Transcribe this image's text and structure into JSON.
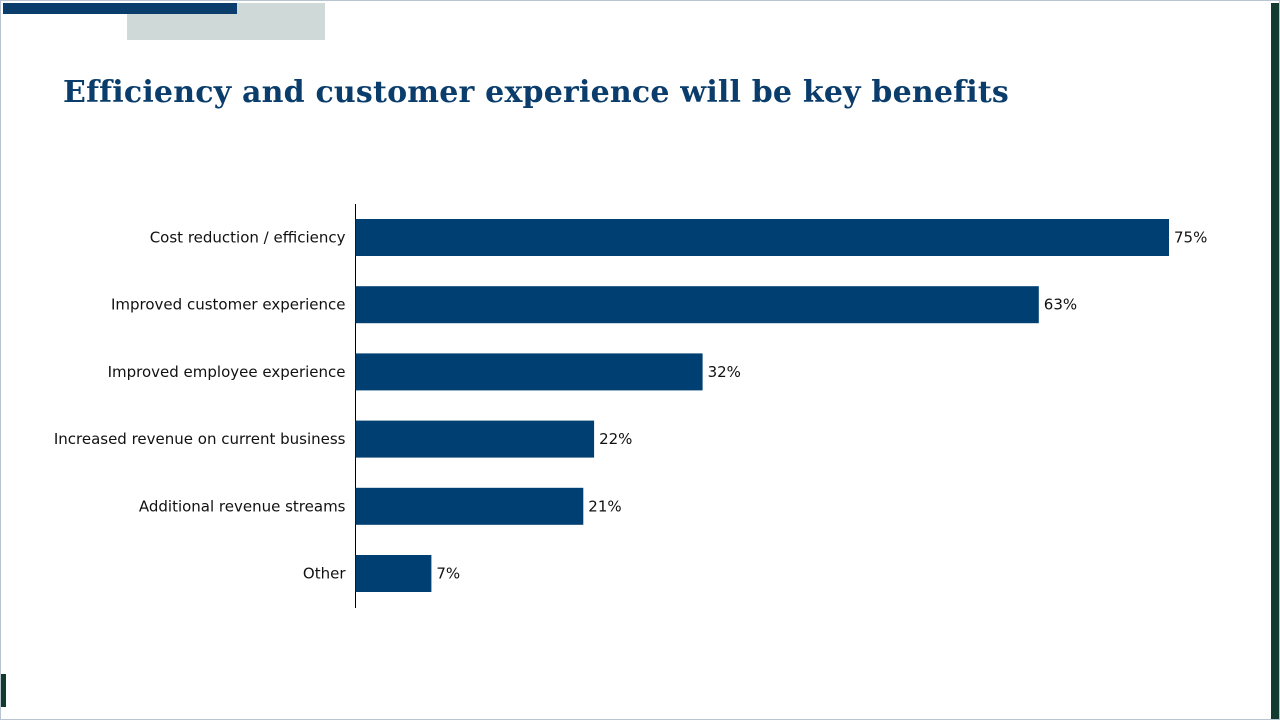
{
  "slide": {
    "title": "Efficiency and customer experience will be key benefits",
    "colors": {
      "title": "#0a3d6b",
      "accent_bar": "#0a3d6b",
      "accent_block": "#cfdad8",
      "edge_accent": "#123a2e"
    }
  },
  "chart_data": {
    "type": "bar",
    "orientation": "horizontal",
    "categories": [
      "Cost reduction / efficiency",
      "Improved customer experience",
      "Improved employee experience",
      "Increased revenue on current business",
      "Additional revenue streams",
      "Other"
    ],
    "values": [
      75,
      63,
      32,
      22,
      21,
      7
    ],
    "value_labels": [
      "75%",
      "63%",
      "32%",
      "22%",
      "21%",
      "7%"
    ],
    "unit": "%",
    "xlim": [
      0,
      75
    ],
    "bar_color": "#003f72",
    "grid": false,
    "legend": "none"
  }
}
